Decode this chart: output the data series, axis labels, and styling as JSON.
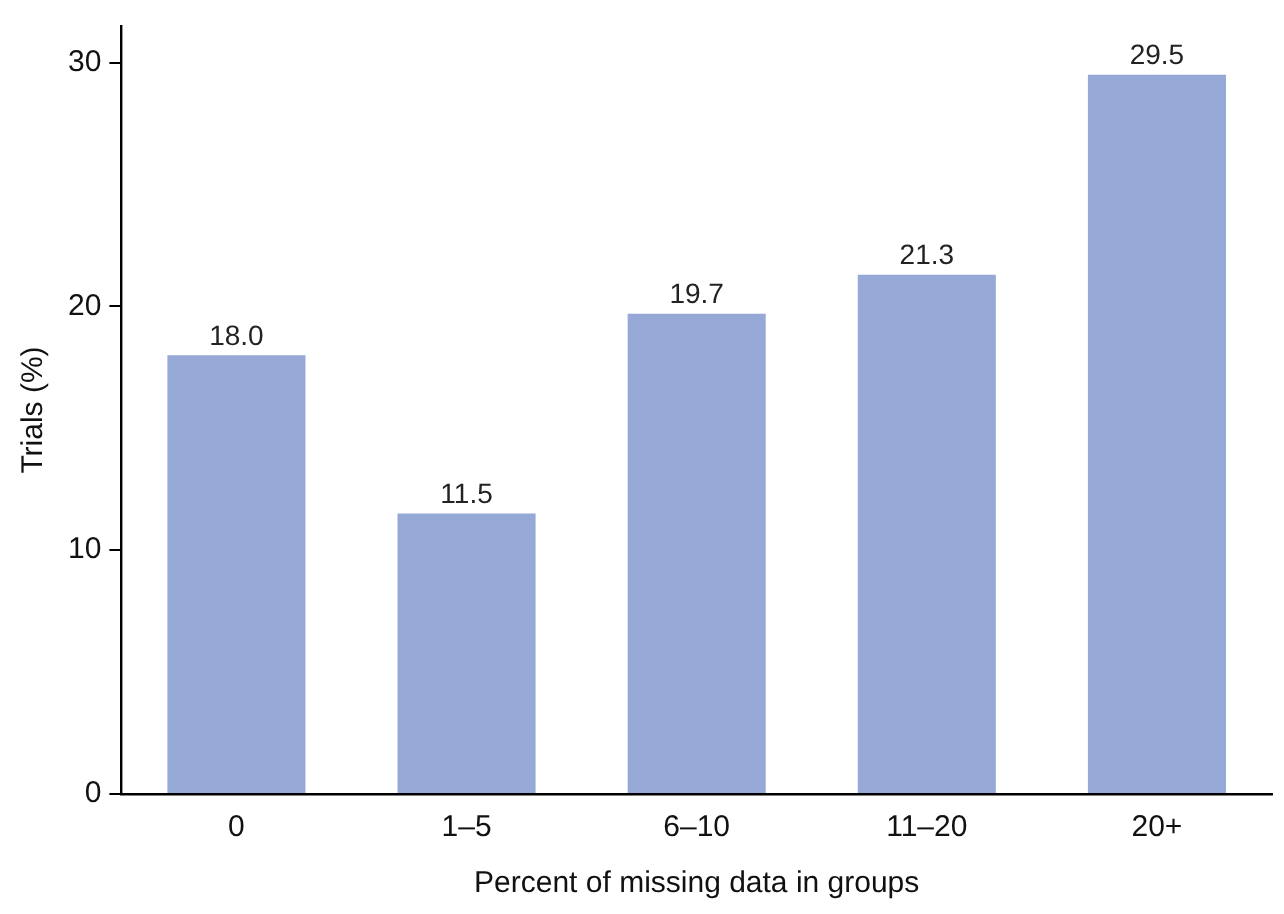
{
  "chart_data": {
    "type": "bar",
    "xlabel": "Percent of missing data in groups",
    "ylabel": "Trials (%)",
    "categories": [
      "0",
      "1–5",
      "6–10",
      "11–20",
      "20+"
    ],
    "values": [
      18.0,
      11.5,
      19.7,
      21.3,
      29.5
    ],
    "value_labels": [
      "18.0",
      "11.5",
      "19.7",
      "21.3",
      "29.5"
    ],
    "color": "#96a9d6",
    "ylim": [
      0,
      31.5
    ],
    "yticks": [
      0,
      10,
      20,
      30
    ],
    "grid": false,
    "legend": false
  }
}
